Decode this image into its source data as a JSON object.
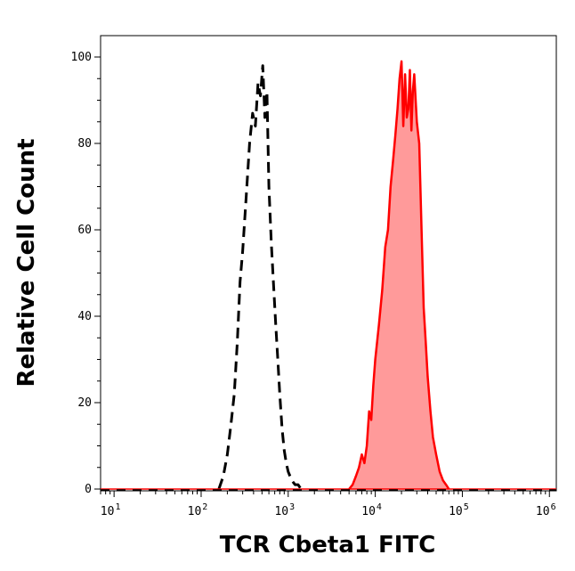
{
  "chart_data": {
    "type": "area",
    "title": "",
    "xlabel": "TCR Cbeta1 FITC",
    "ylabel": "Relative Cell Count",
    "x_scale": "log",
    "xlim": [
      7,
      1200000
    ],
    "ylim": [
      0,
      105
    ],
    "x_ticks": [
      {
        "base": "10",
        "exp": "1",
        "value": 10
      },
      {
        "base": "10",
        "exp": "2",
        "value": 100
      },
      {
        "base": "10",
        "exp": "3",
        "value": 1000
      },
      {
        "base": "10",
        "exp": "4",
        "value": 10000
      },
      {
        "base": "10",
        "exp": "5",
        "value": 100000
      },
      {
        "base": "10",
        "exp": "6",
        "value": 1000000
      }
    ],
    "y_ticks": [
      "0",
      "20",
      "40",
      "60",
      "80",
      "100"
    ],
    "grid": false,
    "colors": {
      "control": "#000000",
      "stained_line": "#ff0000",
      "stained_fill": "#ff9a9a"
    },
    "series": [
      {
        "style": "dashed-black",
        "x": [
          160,
          180,
          200,
          220,
          240,
          260,
          280,
          300,
          330,
          360,
          390,
          420,
          450,
          480,
          510,
          540,
          570,
          600,
          640,
          680,
          720,
          760,
          800,
          850,
          900,
          950,
          1000,
          1100,
          1200,
          1300,
          1400
        ],
        "y": [
          0,
          3,
          8,
          15,
          22,
          34,
          48,
          55,
          68,
          80,
          87,
          84,
          94,
          91,
          98,
          86,
          92,
          70,
          57,
          47,
          38,
          30,
          22,
          14,
          9,
          6,
          4,
          2,
          1,
          1,
          0
        ]
      },
      {
        "style": "solid-red-filled",
        "x": [
          5000,
          5500,
          6000,
          6500,
          7000,
          7500,
          8000,
          8500,
          9000,
          9500,
          10000,
          11000,
          12000,
          13000,
          14000,
          15000,
          16000,
          17000,
          18000,
          19000,
          20000,
          21000,
          22000,
          23000,
          24000,
          25000,
          26000,
          27000,
          28000,
          30000,
          32000,
          34000,
          36000,
          38000,
          40000,
          43000,
          46000,
          50000,
          55000,
          60000,
          65000,
          70000
        ],
        "y": [
          0,
          1,
          3,
          5,
          8,
          6,
          10,
          18,
          16,
          24,
          30,
          38,
          46,
          56,
          60,
          70,
          76,
          82,
          88,
          95,
          99,
          84,
          96,
          86,
          88,
          97,
          83,
          92,
          96,
          85,
          80,
          60,
          42,
          34,
          26,
          18,
          12,
          8,
          4,
          2,
          1,
          0
        ]
      }
    ]
  }
}
